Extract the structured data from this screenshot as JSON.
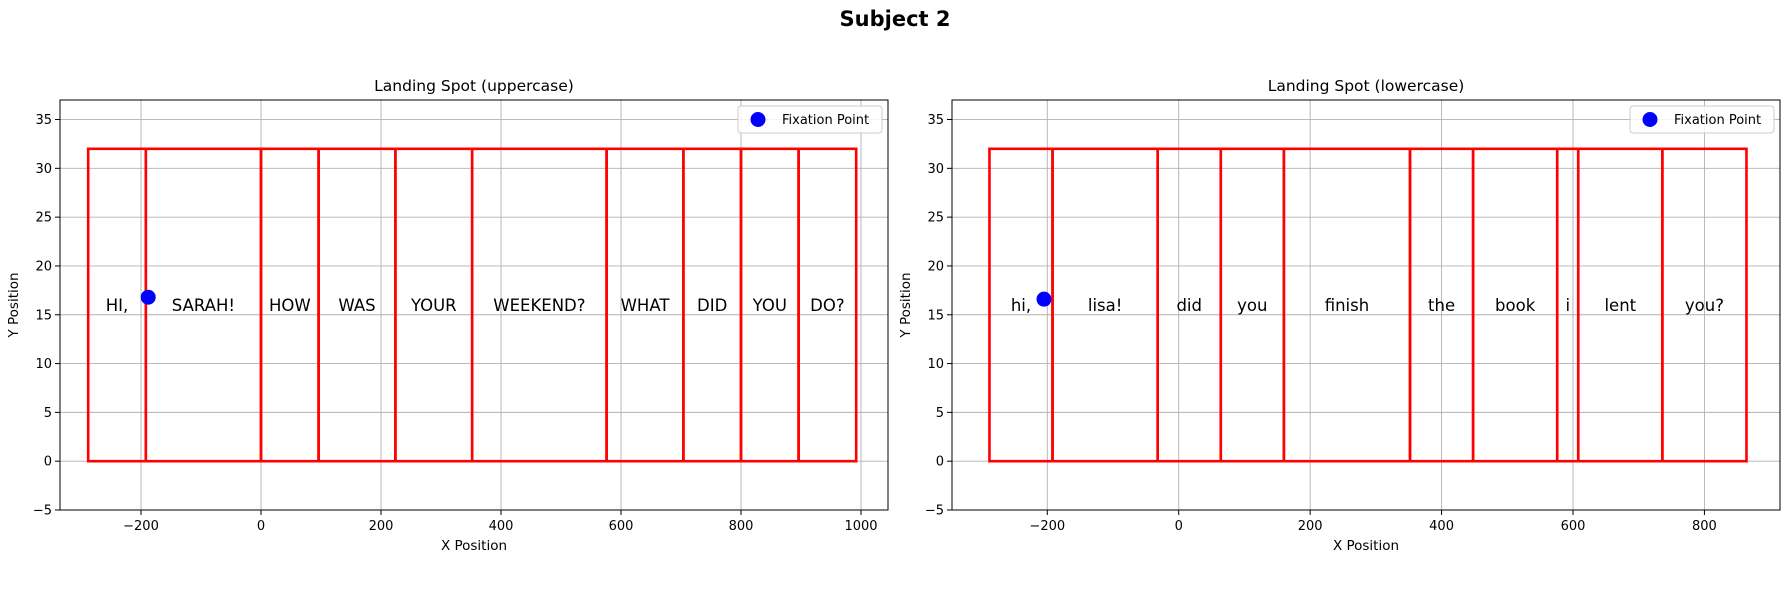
{
  "figure": {
    "suptitle": "Subject 2"
  },
  "chart_data": [
    {
      "type": "scatter",
      "title": "Landing Spot (uppercase)",
      "xlabel": "X Position",
      "ylabel": "Y Position",
      "xlim": [
        -335,
        1045
      ],
      "ylim": [
        -5,
        37
      ],
      "xticks": [
        -200,
        0,
        200,
        400,
        600,
        800,
        1000
      ],
      "yticks": [
        -5,
        0,
        5,
        10,
        15,
        20,
        25,
        30,
        35
      ],
      "grid": true,
      "legend": {
        "entries": [
          "Fixation Point"
        ],
        "placement": "top-right"
      },
      "word_box_y_range": [
        0,
        32
      ],
      "word_label_y": 16,
      "words": [
        {
          "text": "HI,",
          "x0": -288,
          "x1": -192
        },
        {
          "text": "SARAH!",
          "x0": -192,
          "x1": 0
        },
        {
          "text": "HOW",
          "x0": 0,
          "x1": 96
        },
        {
          "text": "WAS",
          "x0": 96,
          "x1": 224
        },
        {
          "text": "YOUR",
          "x0": 224,
          "x1": 352
        },
        {
          "text": "WEEKEND?",
          "x0": 352,
          "x1": 576
        },
        {
          "text": "WHAT",
          "x0": 576,
          "x1": 704
        },
        {
          "text": "DID",
          "x0": 704,
          "x1": 800
        },
        {
          "text": "YOU",
          "x0": 800,
          "x1": 896
        },
        {
          "text": "DO?",
          "x0": 896,
          "x1": 992
        }
      ],
      "fixation_points": [
        {
          "x": -188,
          "y": 16.8
        }
      ]
    },
    {
      "type": "scatter",
      "title": "Landing Spot (lowercase)",
      "xlabel": "X Position",
      "ylabel": "Y Position",
      "xlim": [
        -345,
        915
      ],
      "ylim": [
        -5,
        37
      ],
      "xticks": [
        -200,
        0,
        200,
        400,
        600,
        800
      ],
      "yticks": [
        -5,
        0,
        5,
        10,
        15,
        20,
        25,
        30,
        35
      ],
      "grid": true,
      "legend": {
        "entries": [
          "Fixation Point"
        ],
        "placement": "top-right"
      },
      "word_box_y_range": [
        0,
        32
      ],
      "word_label_y": 16,
      "words": [
        {
          "text": "hi,",
          "x0": -288,
          "x1": -192
        },
        {
          "text": "lisa!",
          "x0": -192,
          "x1": -32
        },
        {
          "text": "did",
          "x0": -32,
          "x1": 64
        },
        {
          "text": "you",
          "x0": 64,
          "x1": 160
        },
        {
          "text": "finish",
          "x0": 160,
          "x1": 352
        },
        {
          "text": "the",
          "x0": 352,
          "x1": 448
        },
        {
          "text": "book",
          "x0": 448,
          "x1": 576
        },
        {
          "text": "i",
          "x0": 576,
          "x1": 608
        },
        {
          "text": "lent",
          "x0": 608,
          "x1": 736
        },
        {
          "text": "you?",
          "x0": 736,
          "x1": 864
        }
      ],
      "fixation_points": [
        {
          "x": -205,
          "y": 16.6
        }
      ]
    }
  ],
  "colors": {
    "word_box": "#ff0000",
    "fixation": "#0000ff",
    "grid": "#b0b0b0",
    "axes": "#000000",
    "legend_border": "#cccccc"
  }
}
